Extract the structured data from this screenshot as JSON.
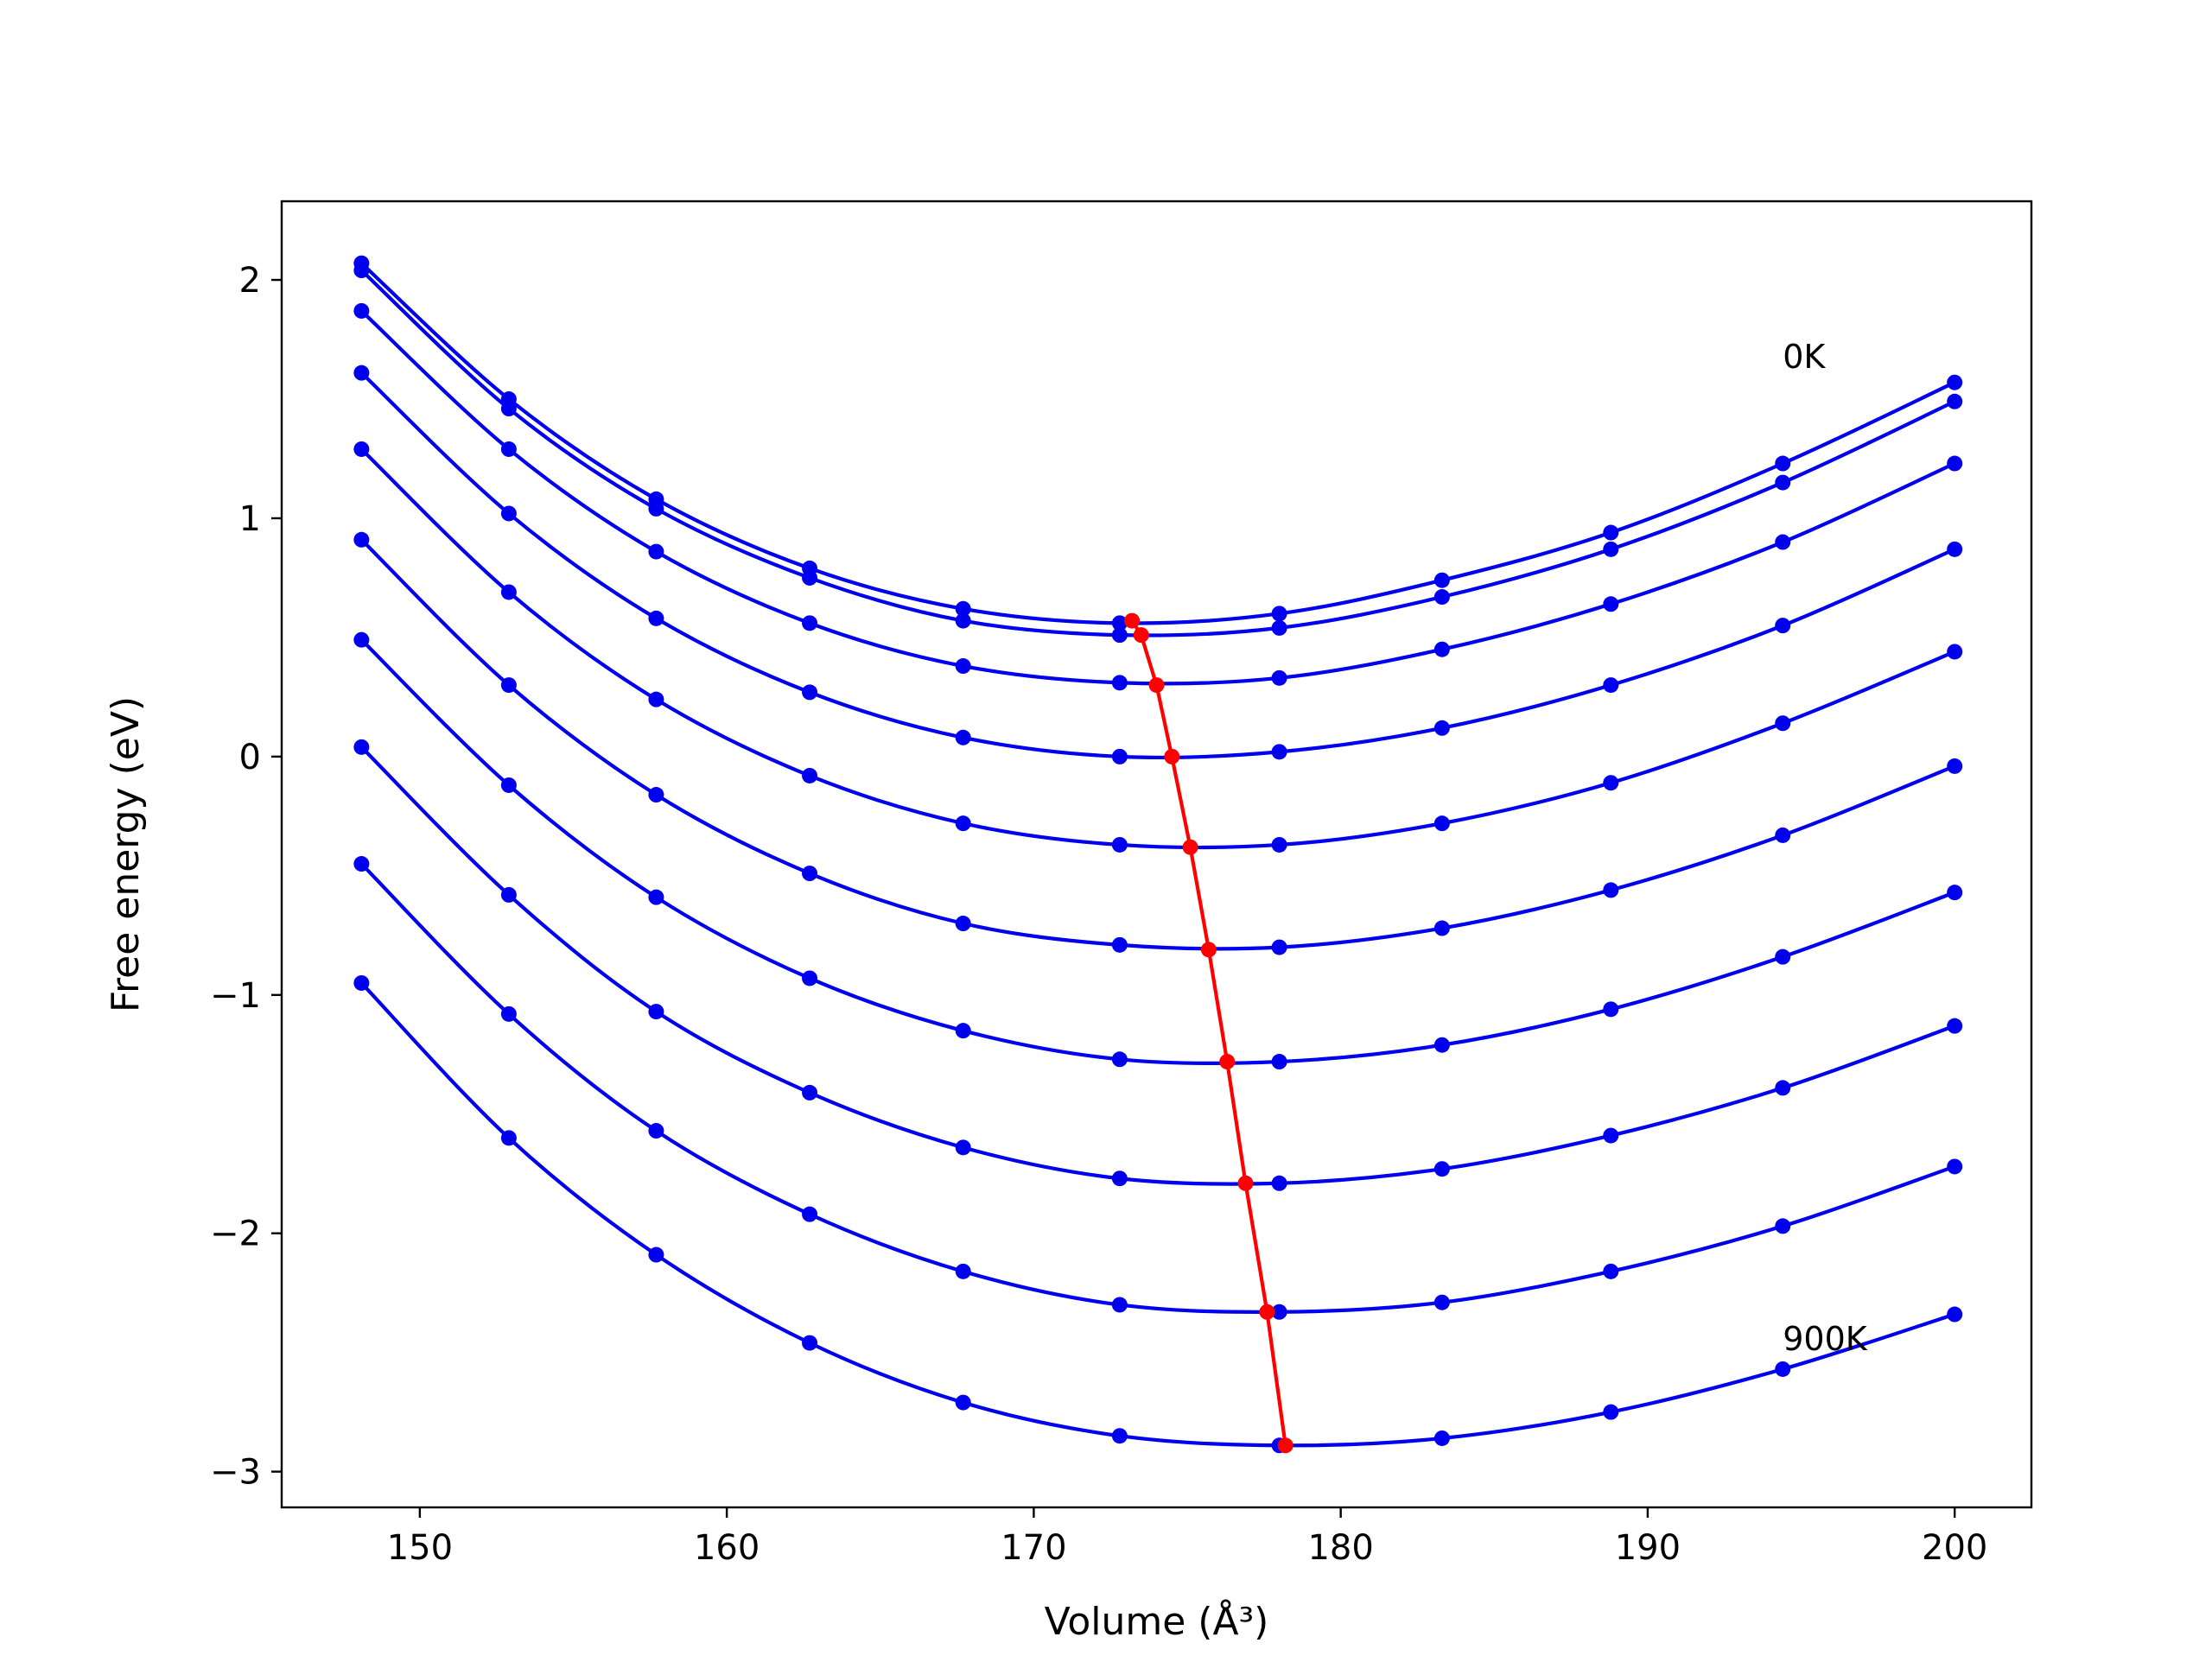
{
  "chart_data": {
    "type": "line",
    "xlabel": "Volume (Å³)",
    "ylabel": "Free energy (eV)",
    "xlim": [
      145.5,
      202.5
    ],
    "ylim": [
      -3.15,
      2.33
    ],
    "xticks": [
      150,
      160,
      170,
      180,
      190,
      200
    ],
    "yticks": [
      -3,
      -2,
      -1,
      0,
      1,
      2
    ],
    "xtick_labels": [
      "150",
      "160",
      "170",
      "180",
      "190",
      "200"
    ],
    "ytick_labels": [
      "−3",
      "−2",
      "−1",
      "0",
      "1",
      "2"
    ],
    "grid": false,
    "annotations": [
      {
        "text": "0K",
        "x": 194.4,
        "y": 1.63
      },
      {
        "text": "900K",
        "x": 194.4,
        "y": -2.49
      }
    ],
    "x": [
      148.1,
      152.9,
      157.7,
      162.7,
      167.7,
      172.8,
      178.0,
      183.3,
      188.8,
      194.4,
      200.0
    ],
    "series": [
      {
        "values": [
          2.07,
          1.5,
          1.08,
          0.79,
          0.62,
          0.56,
          0.6,
          0.74,
          0.94,
          1.23,
          1.57
        ]
      },
      {
        "values": [
          2.04,
          1.46,
          1.04,
          0.75,
          0.57,
          0.51,
          0.54,
          0.67,
          0.87,
          1.15,
          1.49
        ]
      },
      {
        "values": [
          1.87,
          1.29,
          0.86,
          0.56,
          0.38,
          0.31,
          0.33,
          0.45,
          0.64,
          0.9,
          1.23
        ]
      },
      {
        "values": [
          1.61,
          1.02,
          0.58,
          0.27,
          0.08,
          0.0,
          0.02,
          0.12,
          0.3,
          0.55,
          0.87
        ]
      },
      {
        "values": [
          1.29,
          0.69,
          0.24,
          -0.08,
          -0.28,
          -0.37,
          -0.37,
          -0.28,
          -0.11,
          0.14,
          0.44
        ]
      },
      {
        "values": [
          0.91,
          0.3,
          -0.16,
          -0.49,
          -0.7,
          -0.79,
          -0.8,
          -0.72,
          -0.56,
          -0.33,
          -0.04
        ]
      },
      {
        "values": [
          0.49,
          -0.12,
          -0.59,
          -0.93,
          -1.15,
          -1.27,
          -1.28,
          -1.21,
          -1.06,
          -0.84,
          -0.57
        ]
      },
      {
        "values": [
          0.04,
          -0.58,
          -1.07,
          -1.41,
          -1.64,
          -1.77,
          -1.79,
          -1.73,
          -1.59,
          -1.39,
          -1.13
        ]
      },
      {
        "values": [
          -0.45,
          -1.08,
          -1.57,
          -1.92,
          -2.16,
          -2.3,
          -2.33,
          -2.29,
          -2.16,
          -1.97,
          -1.72
        ]
      },
      {
        "values": [
          -0.95,
          -1.6,
          -2.09,
          -2.46,
          -2.71,
          -2.85,
          -2.89,
          -2.86,
          -2.75,
          -2.57,
          -2.34
        ]
      }
    ],
    "minima": {
      "x": [
        173.2,
        173.5,
        174.0,
        174.5,
        175.1,
        175.7,
        176.3,
        176.9,
        177.6,
        178.2
      ],
      "y": [
        0.57,
        0.51,
        0.3,
        0.0,
        -0.38,
        -0.81,
        -1.28,
        -1.79,
        -2.33,
        -2.89
      ]
    },
    "colors": {
      "curves": "#0000ee",
      "minima": "#ff0000",
      "axes": "#000000"
    }
  }
}
